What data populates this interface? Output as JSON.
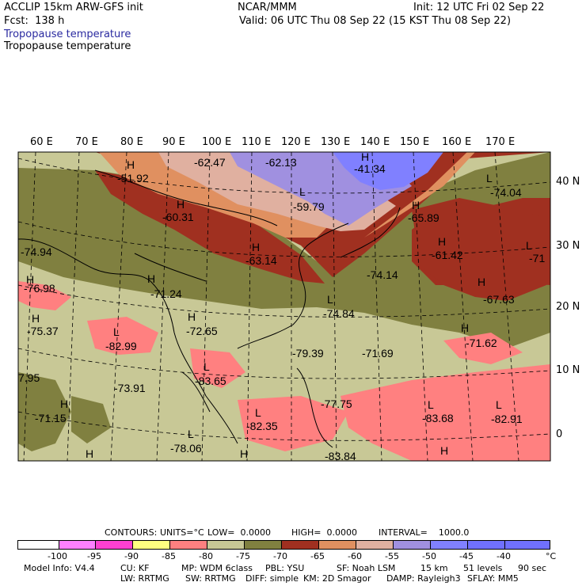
{
  "header": {
    "model": "ACCLIP 15km ARW-GFS init",
    "org": "NCAR/MMM",
    "init": "Init: 12 UTC Fri 02 Sep 22",
    "fcst": "Fcst:  138 h",
    "valid": "Valid: 06 UTC Thu 08 Sep 22 (15 KST Thu 08 Sep 22)",
    "field_blue": "Tropopause temperature",
    "field_black": "Tropopause temperature"
  },
  "lon_labels": [
    "60 E",
    "70 E",
    "80 E",
    "90 E",
    "100 E",
    "110 E",
    "120 E",
    "130 E",
    "140 E",
    "150 E",
    "160 E",
    "170 E"
  ],
  "lat_labels": [
    "40 N",
    "30 N",
    "20 N",
    "10 N",
    "0"
  ],
  "map_labels": [
    {
      "t": "H"
    },
    {
      "t": "-51.92"
    },
    {
      "t": "-62.47"
    },
    {
      "t": "-62.13"
    },
    {
      "t": "H"
    },
    {
      "t": "-41.34"
    },
    {
      "t": "L"
    },
    {
      "t": "-74.04"
    },
    {
      "t": "H"
    },
    {
      "t": "-60.31"
    },
    {
      "t": "L"
    },
    {
      "t": "-59.79"
    },
    {
      "t": "H"
    },
    {
      "t": "-65.89"
    },
    {
      "t": "-74.94"
    },
    {
      "t": "H"
    },
    {
      "t": "-63.14"
    },
    {
      "t": "H"
    },
    {
      "t": "-61.42"
    },
    {
      "t": "L"
    },
    {
      "t": "-71"
    },
    {
      "t": "-74.14"
    },
    {
      "t": "H"
    },
    {
      "t": "-76.98"
    },
    {
      "t": "H"
    },
    {
      "t": "-71.24"
    },
    {
      "t": "H"
    },
    {
      "t": "-67.63"
    },
    {
      "t": "H"
    },
    {
      "t": "-75.37"
    },
    {
      "t": "L"
    },
    {
      "t": "-74.84"
    },
    {
      "t": "H"
    },
    {
      "t": "-72.65"
    },
    {
      "t": "L"
    },
    {
      "t": "-82.99"
    },
    {
      "t": "H"
    },
    {
      "t": "-71.62"
    },
    {
      "t": "-79.39"
    },
    {
      "t": "-71.69"
    },
    {
      "t": "L"
    },
    {
      "t": "-83.65"
    },
    {
      "t": "-73.91"
    },
    {
      "t": "7.95"
    },
    {
      "t": "H"
    },
    {
      "t": "-71.15"
    },
    {
      "t": "-77.75"
    },
    {
      "t": "L"
    },
    {
      "t": "-83.68"
    },
    {
      "t": "L"
    },
    {
      "t": "-82.91"
    },
    {
      "t": "L"
    },
    {
      "t": "-82.35"
    },
    {
      "t": "L"
    },
    {
      "t": "-78.06"
    },
    {
      "t": "-83.84"
    },
    {
      "t": "H"
    },
    {
      "t": "H"
    },
    {
      "t": "H"
    }
  ],
  "contour_info": {
    "contours": "CONTOURS:",
    "units": "UNITS=°C",
    "low": "LOW=  0.0000",
    "high": "HIGH=  0.0000",
    "interval": "INTERVAL=    1000.0"
  },
  "colorbar": {
    "ticks": [
      "-100",
      "-95",
      "-90",
      "-85",
      "-80",
      "-75",
      "-70",
      "-65",
      "-60",
      "-55",
      "-50",
      "-45",
      "-40",
      "°C"
    ],
    "colors": [
      "#ffffff",
      "#ff80ff",
      "#ff40d0",
      "#ffff80",
      "#ff8080",
      "#c8c896",
      "#808040",
      "#a03020",
      "#e09060",
      "#e0b0a0",
      "#a090e0",
      "#8080ff",
      "#7070ff"
    ]
  },
  "footer": {
    "line1": [
      "Model Info: V4.4",
      "CU: KF",
      "MP: WDM 6class",
      "PBL: YSU",
      "SF: Noah LSM",
      "15 km",
      "51 levels",
      "90 sec"
    ],
    "line2": [
      "LW: RRTMG",
      "SW: RRTMG",
      "DIFF: simple",
      "KM: 2D Smagor",
      "DAMP: Rayleigh3",
      "SFLAY: MM5"
    ]
  }
}
